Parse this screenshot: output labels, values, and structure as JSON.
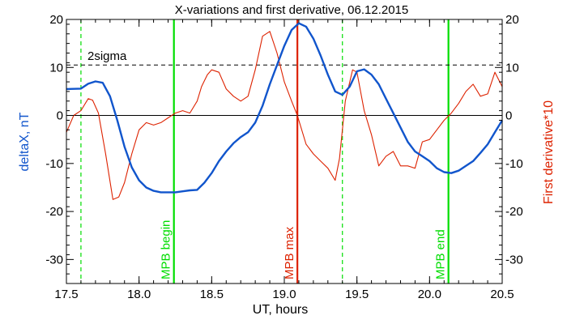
{
  "chart_data": {
    "type": "line",
    "title": "X-variations and first derivative, 06.12.2015",
    "xlabel": "UT, hours",
    "ylabel_left": "deltaX, nT",
    "ylabel_right": "First derivative*10",
    "xlim": [
      17.5,
      20.5
    ],
    "ylim": [
      -35,
      20
    ],
    "xticks": [
      17.5,
      18.0,
      18.5,
      19.0,
      19.5,
      20.0,
      20.5
    ],
    "xtick_labels": [
      "17.5",
      "18.0",
      "18.5",
      "19.0",
      "19.5",
      "20.0",
      "20.5"
    ],
    "yticks": [
      -30,
      -20,
      -10,
      0,
      10,
      20
    ],
    "ytick_labels": [
      "-30",
      "-20",
      "-10",
      "0",
      "10",
      "20"
    ],
    "grid": false,
    "threshold": {
      "label": "2sigma",
      "y": 10.5
    },
    "zero_line": 0,
    "markers": [
      {
        "label": "MPB begin",
        "x": 18.24,
        "color": "#00dd00",
        "style": "solid"
      },
      {
        "label": "MPB max",
        "x": 19.09,
        "color": "#dd2200",
        "style": "solid"
      },
      {
        "label": "MPB end",
        "x": 20.13,
        "color": "#00dd00",
        "style": "solid"
      },
      {
        "label": "",
        "x": 17.6,
        "color": "#00dd00",
        "style": "dashed"
      },
      {
        "label": "",
        "x": 19.4,
        "color": "#00dd00",
        "style": "dashed"
      }
    ],
    "series": [
      {
        "name": "deltaX, nT",
        "color": "#1155cc",
        "x": [
          17.5,
          17.6,
          17.65,
          17.7,
          17.75,
          17.8,
          17.85,
          17.9,
          17.95,
          18.0,
          18.05,
          18.1,
          18.15,
          18.2,
          18.25,
          18.3,
          18.35,
          18.4,
          18.45,
          18.5,
          18.55,
          18.6,
          18.65,
          18.7,
          18.75,
          18.8,
          18.85,
          18.9,
          18.95,
          19.0,
          19.05,
          19.1,
          19.15,
          19.2,
          19.25,
          19.3,
          19.35,
          19.4,
          19.45,
          19.5,
          19.55,
          19.6,
          19.65,
          19.7,
          19.75,
          19.8,
          19.85,
          19.9,
          19.95,
          20.0,
          20.05,
          20.1,
          20.15,
          20.2,
          20.25,
          20.3,
          20.35,
          20.4,
          20.45,
          20.5
        ],
        "values": [
          5.5,
          5.6,
          6.6,
          7.1,
          6.8,
          4.0,
          -1.0,
          -6.5,
          -10.8,
          -13.5,
          -15.0,
          -15.7,
          -16.0,
          -16.0,
          -16.0,
          -15.8,
          -15.6,
          -15.5,
          -14.0,
          -12.0,
          -9.5,
          -7.5,
          -5.8,
          -4.5,
          -3.5,
          -1.5,
          2.0,
          6.5,
          10.5,
          14.5,
          17.8,
          19.2,
          18.5,
          16.0,
          12.5,
          8.5,
          5.0,
          4.3,
          6.0,
          9.2,
          9.6,
          8.5,
          6.5,
          3.5,
          0.5,
          -2.5,
          -5.5,
          -7.5,
          -8.5,
          -9.5,
          -11.0,
          -11.8,
          -12.0,
          -11.5,
          -10.5,
          -9.5,
          -7.8,
          -6.0,
          -3.5,
          -1.0
        ]
      },
      {
        "name": "First derivative*10",
        "color": "#dd2200",
        "x": [
          17.5,
          17.55,
          17.6,
          17.65,
          17.68,
          17.72,
          17.77,
          17.82,
          17.86,
          17.9,
          17.95,
          18.0,
          18.05,
          18.1,
          18.15,
          18.2,
          18.25,
          18.3,
          18.35,
          18.4,
          18.43,
          18.47,
          18.5,
          18.55,
          18.6,
          18.65,
          18.7,
          18.75,
          18.8,
          18.85,
          18.9,
          18.95,
          19.0,
          19.05,
          19.09,
          19.15,
          19.2,
          19.25,
          19.3,
          19.35,
          19.38,
          19.42,
          19.47,
          19.5,
          19.55,
          19.6,
          19.65,
          19.7,
          19.75,
          19.8,
          19.85,
          19.9,
          19.95,
          20.0,
          20.05,
          20.1,
          20.15,
          20.2,
          20.25,
          20.3,
          20.35,
          20.4,
          20.45,
          20.5
        ],
        "values": [
          -3.5,
          0.0,
          1.0,
          3.5,
          3.2,
          0.5,
          -8.0,
          -17.5,
          -17.0,
          -14.0,
          -8.0,
          -3.0,
          -1.5,
          -2.0,
          -1.5,
          -0.5,
          0.5,
          1.0,
          0.5,
          3.0,
          6.0,
          8.5,
          9.5,
          9.0,
          5.5,
          4.0,
          3.0,
          4.0,
          9.5,
          16.5,
          17.5,
          13.0,
          7.0,
          3.0,
          0.0,
          -6.0,
          -8.0,
          -9.5,
          -11.0,
          -13.5,
          -9.0,
          3.0,
          9.5,
          9.0,
          1.0,
          -4.0,
          -10.5,
          -8.5,
          -7.5,
          -10.5,
          -10.5,
          -11.0,
          -5.5,
          -5.0,
          -3.0,
          -1.0,
          0.5,
          2.5,
          5.0,
          6.5,
          4.0,
          4.5,
          9.0,
          6.0
        ]
      }
    ]
  }
}
